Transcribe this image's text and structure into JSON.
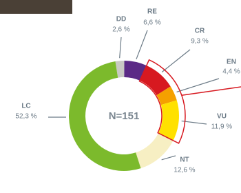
{
  "chart_data": {
    "type": "pie",
    "center_label": "N=151",
    "categories": [
      "DD",
      "RE",
      "CR",
      "EN",
      "VU",
      "NT",
      "LC"
    ],
    "values": [
      2.6,
      6.6,
      9.3,
      4.4,
      11.9,
      12.6,
      52.3
    ],
    "value_labels": [
      "2,6 %",
      "6,6 %",
      "9,3 %",
      "4,4 %",
      "11,9 %",
      "12,6 %",
      "52,3 %"
    ],
    "colors": [
      "#c9c9c4",
      "#5b2a86",
      "#d71920",
      "#f5a000",
      "#ffe100",
      "#f7efc3",
      "#7cba2c"
    ]
  }
}
